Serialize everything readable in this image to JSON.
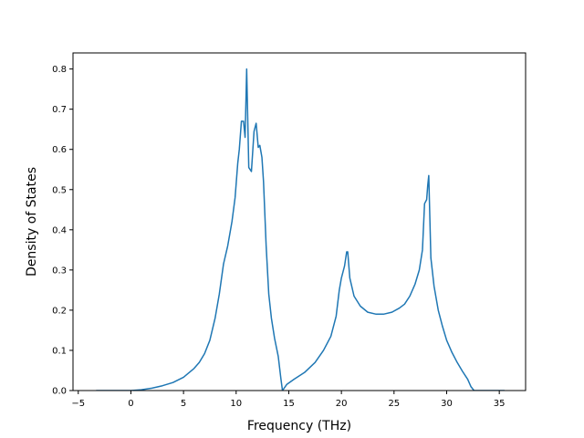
{
  "chart_data": {
    "type": "line",
    "title": "",
    "xlabel": "Frequency (THz)",
    "ylabel": "Density of States",
    "xlim": [
      -5.5,
      37.5
    ],
    "ylim": [
      0.0,
      0.84
    ],
    "xticks": [
      -5,
      0,
      5,
      10,
      15,
      20,
      25,
      30,
      35
    ],
    "yticks": [
      0.0,
      0.1,
      0.2,
      0.3,
      0.4,
      0.5,
      0.6,
      0.7,
      0.8
    ],
    "xtick_labels": [
      "−5",
      "0",
      "5",
      "10",
      "15",
      "20",
      "25",
      "30",
      "35"
    ],
    "ytick_labels": [
      "0.0",
      "0.1",
      "0.2",
      "0.3",
      "0.4",
      "0.5",
      "0.6",
      "0.7",
      "0.8"
    ],
    "grid": false,
    "color": "#1f77b4",
    "series": [
      {
        "name": "",
        "x": [
          -3.3,
          -1.0,
          0.0,
          1.0,
          2.0,
          3.0,
          4.0,
          5.0,
          6.0,
          6.5,
          7.0,
          7.5,
          8.0,
          8.4,
          8.8,
          9.2,
          9.6,
          9.9,
          10.15,
          10.3,
          10.5,
          10.7,
          10.85,
          11.0,
          11.2,
          11.45,
          11.7,
          11.9,
          12.1,
          12.25,
          12.45,
          12.6,
          12.85,
          13.1,
          13.35,
          13.65,
          14.0,
          14.25,
          14.4,
          14.8,
          15.5,
          16.5,
          17.5,
          18.3,
          19.0,
          19.5,
          19.8,
          20.0,
          20.3,
          20.5,
          20.6,
          20.8,
          21.2,
          21.8,
          22.5,
          23.3,
          24.0,
          24.8,
          25.5,
          26.0,
          26.5,
          27.0,
          27.4,
          27.7,
          27.9,
          28.1,
          28.2,
          28.3,
          28.5,
          28.8,
          29.2,
          29.6,
          30.0,
          30.5,
          31.0,
          31.5,
          32.0,
          32.3,
          32.6,
          33.5,
          34.5,
          35.5
        ],
        "y": [
          0.0,
          0.0,
          0.0,
          0.002,
          0.006,
          0.012,
          0.02,
          0.033,
          0.055,
          0.07,
          0.092,
          0.125,
          0.18,
          0.24,
          0.315,
          0.36,
          0.42,
          0.48,
          0.565,
          0.6,
          0.67,
          0.67,
          0.63,
          0.8,
          0.555,
          0.545,
          0.645,
          0.665,
          0.605,
          0.61,
          0.58,
          0.52,
          0.36,
          0.24,
          0.18,
          0.13,
          0.085,
          0.03,
          0.0,
          0.015,
          0.028,
          0.045,
          0.07,
          0.1,
          0.135,
          0.185,
          0.25,
          0.28,
          0.31,
          0.345,
          0.345,
          0.28,
          0.235,
          0.21,
          0.195,
          0.19,
          0.19,
          0.195,
          0.205,
          0.215,
          0.235,
          0.265,
          0.3,
          0.35,
          0.465,
          0.475,
          0.51,
          0.535,
          0.33,
          0.26,
          0.2,
          0.16,
          0.125,
          0.095,
          0.07,
          0.048,
          0.028,
          0.01,
          0.0,
          0.0,
          0.0,
          0.0
        ]
      }
    ]
  }
}
